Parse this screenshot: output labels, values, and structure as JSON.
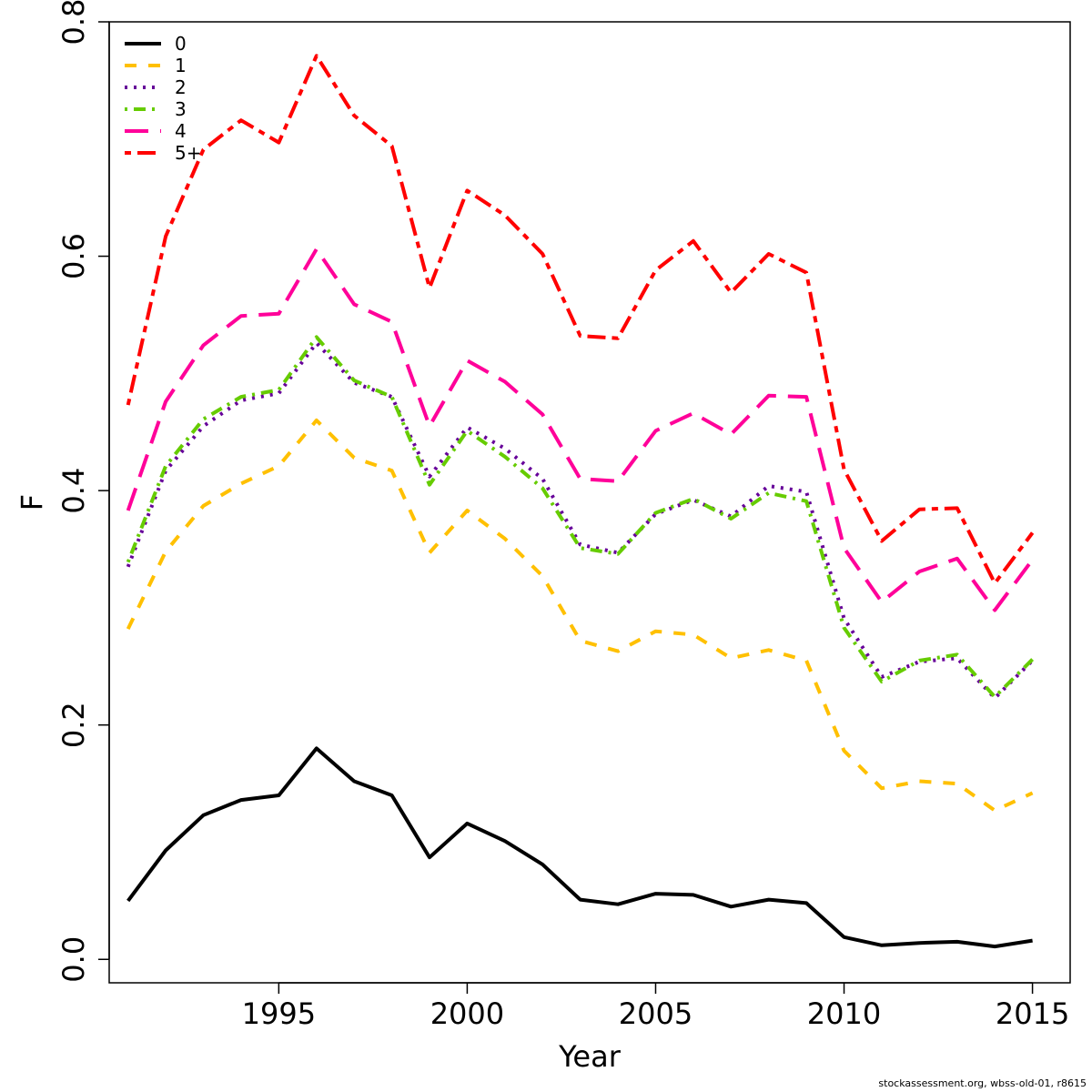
{
  "chart_data": {
    "type": "line",
    "xlabel": "Year",
    "ylabel": "F",
    "xlim": [
      1990.5,
      2016
    ],
    "ylim": [
      -0.02,
      0.8
    ],
    "x_ticks": [
      1995,
      2000,
      2005,
      2010,
      2015
    ],
    "y_ticks": [
      0.0,
      0.2,
      0.4,
      0.6,
      0.8
    ],
    "y_tick_labels": [
      "0.0",
      "0.2",
      "0.4",
      "0.6",
      "0.8"
    ],
    "legend_position": "top-left",
    "x": [
      1991,
      1992,
      1993,
      1994,
      1995,
      1996,
      1997,
      1998,
      1999,
      2000,
      2001,
      2002,
      2003,
      2004,
      2005,
      2006,
      2007,
      2008,
      2009,
      2010,
      2011,
      2012,
      2013,
      2014,
      2015
    ],
    "series": [
      {
        "name": "0",
        "color": "#000000",
        "dash": "solid",
        "values": [
          0.05,
          0.093,
          0.123,
          0.136,
          0.14,
          0.18,
          0.152,
          0.14,
          0.087,
          0.116,
          0.101,
          0.081,
          0.051,
          0.047,
          0.056,
          0.055,
          0.045,
          0.051,
          0.048,
          0.019,
          0.012,
          0.014,
          0.015,
          0.011,
          0.016
        ]
      },
      {
        "name": "1",
        "color": "#FFC000",
        "dash": "dashed",
        "values": [
          0.282,
          0.348,
          0.387,
          0.406,
          0.421,
          0.46,
          0.428,
          0.417,
          0.347,
          0.383,
          0.359,
          0.327,
          0.272,
          0.263,
          0.28,
          0.277,
          0.257,
          0.264,
          0.255,
          0.178,
          0.146,
          0.152,
          0.15,
          0.127,
          0.142
        ]
      },
      {
        "name": "2",
        "color": "#660099",
        "dash": "dotted",
        "values": [
          0.335,
          0.417,
          0.455,
          0.477,
          0.483,
          0.526,
          0.492,
          0.48,
          0.412,
          0.454,
          0.436,
          0.41,
          0.354,
          0.347,
          0.38,
          0.392,
          0.378,
          0.404,
          0.399,
          0.291,
          0.241,
          0.254,
          0.257,
          0.223,
          0.255
        ]
      },
      {
        "name": "3",
        "color": "#66CC00",
        "dash": "dotdash",
        "values": [
          0.339,
          0.421,
          0.461,
          0.48,
          0.486,
          0.531,
          0.494,
          0.48,
          0.405,
          0.451,
          0.429,
          0.402,
          0.351,
          0.346,
          0.381,
          0.393,
          0.376,
          0.398,
          0.391,
          0.283,
          0.237,
          0.255,
          0.26,
          0.224,
          0.256
        ]
      },
      {
        "name": "4",
        "color": "#FF0099",
        "dash": "longdash",
        "values": [
          0.383,
          0.476,
          0.524,
          0.549,
          0.551,
          0.606,
          0.559,
          0.544,
          0.455,
          0.511,
          0.493,
          0.465,
          0.41,
          0.408,
          0.451,
          0.466,
          0.448,
          0.481,
          0.48,
          0.351,
          0.305,
          0.331,
          0.342,
          0.298,
          0.341
        ]
      },
      {
        "name": "5+",
        "color": "#FF0000",
        "dash": "twodash",
        "values": [
          0.473,
          0.617,
          0.691,
          0.716,
          0.697,
          0.771,
          0.72,
          0.694,
          0.573,
          0.656,
          0.635,
          0.602,
          0.532,
          0.53,
          0.588,
          0.613,
          0.569,
          0.602,
          0.586,
          0.418,
          0.357,
          0.384,
          0.385,
          0.321,
          0.364
        ]
      }
    ]
  },
  "footer": {
    "note": "stockassessment.org, wbss-old-01, r8615"
  }
}
